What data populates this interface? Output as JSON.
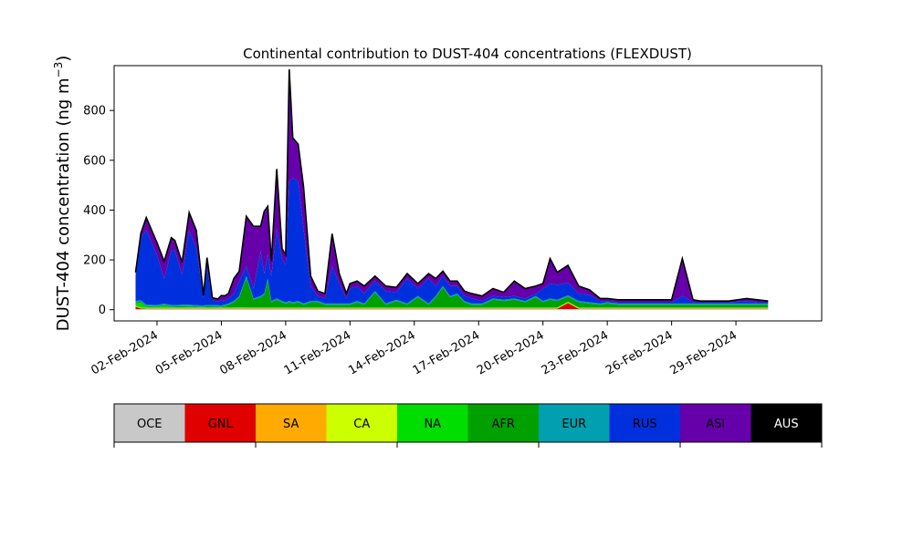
{
  "chart_data": {
    "type": "area",
    "title": "Continental contribution to DUST-404 concentrations (FLEXDUST)",
    "xlabel": "",
    "ylabel_main": "DUST-404 concentration (ng m",
    "ylabel_unit_sup": "−3",
    "ylabel_close": ")",
    "ylim": [
      -45,
      980
    ],
    "yticks": [
      0,
      200,
      400,
      600,
      800
    ],
    "xlim": [
      "2024-01-31",
      "2024-03-04"
    ],
    "xtick_labels": [
      "02-Feb-2024",
      "05-Feb-2024",
      "08-Feb-2024",
      "11-Feb-2024",
      "14-Feb-2024",
      "17-Feb-2024",
      "20-Feb-2024",
      "23-Feb-2024",
      "26-Feb-2024",
      "29-Feb-2024"
    ],
    "xtick_dates": [
      "2024-02-02",
      "2024-02-05",
      "2024-02-08",
      "2024-02-11",
      "2024-02-14",
      "2024-02-17",
      "2024-02-20",
      "2024-02-23",
      "2024-02-26",
      "2024-02-29"
    ],
    "grid": false,
    "stacked": true,
    "total_line_color": "#000000",
    "x": [
      "2024-02-01",
      "2024-02-01",
      "2024-02-01",
      "2024-02-02",
      "2024-02-02",
      "2024-02-02",
      "2024-02-02",
      "2024-02-03",
      "2024-02-03",
      "2024-02-03",
      "2024-02-04",
      "2024-02-04",
      "2024-02-04",
      "2024-02-04",
      "2024-02-05",
      "2024-02-05",
      "2024-02-05",
      "2024-02-05",
      "2024-02-05",
      "2024-02-06",
      "2024-02-06",
      "2024-02-06",
      "2024-02-07",
      "2024-02-07",
      "2024-02-07",
      "2024-02-07",
      "2024-02-07",
      "2024-02-08",
      "2024-02-08",
      "2024-02-08",
      "2024-02-08",
      "2024-02-08",
      "2024-02-09",
      "2024-02-09",
      "2024-02-09",
      "2024-02-10",
      "2024-02-10",
      "2024-02-10",
      "2024-02-11",
      "2024-02-11",
      "2024-02-11",
      "2024-02-12",
      "2024-02-12",
      "2024-02-13",
      "2024-02-13",
      "2024-02-14",
      "2024-02-14",
      "2024-02-15",
      "2024-02-15",
      "2024-02-15",
      "2024-02-16",
      "2024-02-16",
      "2024-02-16",
      "2024-02-17",
      "2024-02-17",
      "2024-02-18",
      "2024-02-18",
      "2024-02-19",
      "2024-02-19",
      "2024-02-20",
      "2024-02-20",
      "2024-02-20",
      "2024-02-21",
      "2024-02-21",
      "2024-02-22",
      "2024-02-22",
      "2024-02-23",
      "2024-02-23",
      "2024-02-24",
      "2024-02-25",
      "2024-02-26",
      "2024-02-26",
      "2024-02-27",
      "2024-02-27",
      "2024-02-27",
      "2024-02-28",
      "2024-02-28",
      "2024-02-29",
      "2024-03-01",
      "2024-03-01"
    ],
    "x_time_of_day_hours": [
      0,
      6,
      12,
      0,
      8,
      16,
      20,
      4,
      12,
      20,
      4,
      8,
      14,
      20,
      0,
      4,
      8,
      14,
      20,
      4,
      12,
      20,
      0,
      4,
      8,
      14,
      20,
      0,
      4,
      8,
      14,
      20,
      4,
      12,
      20,
      4,
      12,
      20,
      0,
      8,
      16,
      4,
      16,
      4,
      16,
      4,
      16,
      0,
      8,
      16,
      0,
      8,
      16,
      4,
      16,
      4,
      16,
      4,
      16,
      0,
      8,
      16,
      4,
      16,
      4,
      16,
      0,
      12,
      0,
      0,
      0,
      12,
      0,
      8,
      16,
      4,
      16,
      12,
      0,
      12
    ],
    "series": [
      {
        "name": "OCE",
        "color": "#c8c8c8",
        "values": [
          2,
          2,
          2,
          2,
          2,
          2,
          2,
          2,
          2,
          2,
          2,
          2,
          2,
          2,
          2,
          2,
          2,
          2,
          2,
          2,
          2,
          2,
          2,
          2,
          2,
          2,
          2,
          2,
          2,
          2,
          2,
          2,
          2,
          2,
          2,
          2,
          2,
          2,
          2,
          2,
          2,
          2,
          2,
          2,
          2,
          2,
          2,
          2,
          2,
          2,
          2,
          2,
          2,
          2,
          2,
          2,
          2,
          2,
          2,
          2,
          2,
          2,
          2,
          2,
          2,
          2,
          2,
          2,
          2,
          2,
          2,
          2,
          2,
          2,
          2,
          2,
          2,
          2,
          2,
          2
        ]
      },
      {
        "name": "GNL",
        "color": "#e00000",
        "values": [
          10,
          3,
          2,
          2,
          2,
          2,
          2,
          2,
          2,
          2,
          2,
          2,
          2,
          2,
          2,
          2,
          2,
          2,
          2,
          2,
          2,
          2,
          2,
          2,
          2,
          2,
          2,
          2,
          2,
          2,
          2,
          2,
          2,
          2,
          2,
          2,
          2,
          2,
          2,
          2,
          2,
          2,
          2,
          2,
          2,
          2,
          2,
          2,
          2,
          2,
          2,
          2,
          2,
          2,
          2,
          2,
          2,
          2,
          2,
          2,
          2,
          2,
          25,
          2,
          2,
          2,
          2,
          2,
          2,
          2,
          2,
          2,
          2,
          2,
          2,
          2,
          2,
          2,
          2,
          2
        ]
      },
      {
        "name": "SA",
        "color": "#ffaa00",
        "values": [
          1,
          1,
          1,
          1,
          1,
          1,
          1,
          1,
          1,
          1,
          1,
          1,
          1,
          1,
          1,
          1,
          1,
          1,
          1,
          1,
          1,
          1,
          1,
          1,
          1,
          1,
          1,
          1,
          1,
          1,
          1,
          1,
          1,
          1,
          1,
          1,
          1,
          1,
          1,
          1,
          1,
          1,
          1,
          1,
          1,
          1,
          1,
          1,
          1,
          1,
          1,
          1,
          1,
          1,
          1,
          1,
          1,
          1,
          1,
          1,
          1,
          1,
          1,
          1,
          1,
          1,
          1,
          1,
          1,
          1,
          1,
          1,
          1,
          1,
          1,
          1,
          1,
          1,
          1,
          1
        ]
      },
      {
        "name": "CA",
        "color": "#ccff00",
        "values": [
          2,
          2,
          2,
          2,
          2,
          2,
          2,
          2,
          2,
          2,
          2,
          2,
          2,
          2,
          2,
          2,
          2,
          2,
          2,
          2,
          2,
          2,
          2,
          2,
          2,
          2,
          2,
          2,
          2,
          2,
          2,
          2,
          2,
          2,
          2,
          2,
          2,
          2,
          2,
          2,
          2,
          2,
          2,
          2,
          2,
          2,
          2,
          2,
          2,
          2,
          2,
          2,
          2,
          2,
          2,
          2,
          2,
          2,
          2,
          2,
          2,
          2,
          2,
          2,
          2,
          2,
          2,
          2,
          2,
          2,
          2,
          2,
          2,
          2,
          2,
          2,
          2,
          2,
          2,
          2
        ]
      },
      {
        "name": "NA",
        "color": "#00dd00",
        "values": [
          10,
          20,
          5,
          4,
          8,
          4,
          3,
          3,
          4,
          3,
          2,
          3,
          3,
          3,
          2,
          4,
          3,
          3,
          2,
          3,
          3,
          3,
          3,
          3,
          3,
          3,
          3,
          3,
          3,
          3,
          3,
          3,
          3,
          3,
          3,
          3,
          3,
          3,
          3,
          3,
          3,
          3,
          3,
          3,
          3,
          3,
          3,
          3,
          3,
          3,
          3,
          3,
          3,
          3,
          3,
          3,
          3,
          3,
          3,
          3,
          3,
          3,
          3,
          3,
          3,
          3,
          3,
          3,
          3,
          3,
          3,
          3,
          3,
          3,
          3,
          3,
          3,
          3,
          3,
          3
        ]
      },
      {
        "name": "AFR",
        "color": "#00a000",
        "values": [
          5,
          5,
          3,
          3,
          4,
          3,
          3,
          5,
          4,
          3,
          3,
          4,
          3,
          3,
          3,
          5,
          10,
          20,
          40,
          120,
          30,
          40,
          50,
          110,
          20,
          30,
          20,
          15,
          20,
          15,
          20,
          10,
          20,
          20,
          10,
          10,
          10,
          10,
          10,
          20,
          10,
          60,
          10,
          25,
          10,
          40,
          10,
          40,
          80,
          40,
          50,
          20,
          10,
          10,
          30,
          25,
          30,
          20,
          40,
          20,
          30,
          25,
          20,
          20,
          15,
          10,
          15,
          10,
          10,
          10,
          10,
          10,
          10,
          10,
          10,
          10,
          10,
          10,
          10,
          10
        ]
      },
      {
        "name": "EUR",
        "color": "#00a0b0",
        "values": [
          5,
          5,
          5,
          5,
          5,
          5,
          5,
          5,
          5,
          5,
          5,
          5,
          5,
          5,
          5,
          5,
          5,
          5,
          5,
          5,
          5,
          5,
          5,
          5,
          5,
          5,
          5,
          5,
          5,
          5,
          5,
          5,
          5,
          5,
          5,
          5,
          5,
          5,
          5,
          5,
          5,
          5,
          5,
          5,
          5,
          5,
          5,
          5,
          5,
          5,
          5,
          5,
          5,
          5,
          5,
          5,
          5,
          5,
          5,
          5,
          5,
          5,
          5,
          5,
          5,
          5,
          5,
          5,
          5,
          5,
          5,
          5,
          5,
          5,
          5,
          5,
          5,
          5,
          5,
          5
        ]
      },
      {
        "name": "RUS",
        "color": "#0030dd",
        "values": [
          100,
          250,
          300,
          200,
          100,
          220,
          220,
          120,
          300,
          230,
          30,
          150,
          20,
          15,
          20,
          15,
          20,
          30,
          60,
          40,
          40,
          180,
          80,
          100,
          100,
          280,
          170,
          150,
          480,
          500,
          480,
          300,
          60,
          20,
          20,
          150,
          80,
          20,
          60,
          60,
          40,
          40,
          50,
          30,
          100,
          30,
          100,
          40,
          40,
          40,
          30,
          20,
          20,
          10,
          10,
          10,
          10,
          10,
          10,
          50,
          60,
          60,
          50,
          30,
          30,
          10,
          5,
          5,
          5,
          5,
          5,
          30,
          5,
          5,
          5,
          5,
          5,
          10,
          5,
          5
        ]
      },
      {
        "name": "ASI",
        "color": "#6600aa",
        "values": [
          15,
          20,
          50,
          50,
          70,
          50,
          40,
          50,
          70,
          70,
          10,
          40,
          10,
          10,
          20,
          20,
          20,
          60,
          40,
          200,
          250,
          100,
          250,
          190,
          60,
          240,
          40,
          40,
          450,
          160,
          150,
          170,
          40,
          20,
          20,
          130,
          40,
          20,
          20,
          20,
          30,
          20,
          20,
          20,
          20,
          20,
          20,
          30,
          20,
          20,
          20,
          20,
          20,
          20,
          30,
          20,
          60,
          40,
          30,
          20,
          100,
          50,
          70,
          30,
          20,
          10,
          10,
          10,
          10,
          10,
          10,
          150,
          10,
          5,
          5,
          5,
          5,
          10,
          10,
          5
        ]
      },
      {
        "name": "AUS",
        "color": "#000000",
        "values": [
          0,
          0,
          0,
          0,
          0,
          0,
          0,
          0,
          0,
          0,
          0,
          0,
          0,
          0,
          0,
          0,
          0,
          0,
          0,
          0,
          0,
          0,
          0,
          0,
          0,
          0,
          0,
          0,
          0,
          0,
          0,
          0,
          0,
          0,
          0,
          0,
          0,
          0,
          0,
          0,
          0,
          0,
          0,
          0,
          0,
          0,
          0,
          0,
          0,
          0,
          0,
          0,
          0,
          0,
          0,
          0,
          0,
          0,
          0,
          0,
          0,
          0,
          0,
          0,
          0,
          0,
          0,
          0,
          0,
          0,
          0,
          0,
          0,
          0,
          0,
          0,
          0,
          0,
          0,
          0
        ]
      }
    ]
  },
  "legend": {
    "placement": "bottom",
    "items": [
      {
        "label": "OCE",
        "color": "#c8c8c8",
        "text_color": "#000000"
      },
      {
        "label": "GNL",
        "color": "#e00000",
        "text_color": "#000000"
      },
      {
        "label": "SA",
        "color": "#ffaa00",
        "text_color": "#000000"
      },
      {
        "label": "CA",
        "color": "#ccff00",
        "text_color": "#000000"
      },
      {
        "label": "NA",
        "color": "#00dd00",
        "text_color": "#000000"
      },
      {
        "label": "AFR",
        "color": "#00a000",
        "text_color": "#000000"
      },
      {
        "label": "EUR",
        "color": "#00a0b0",
        "text_color": "#000000"
      },
      {
        "label": "RUS",
        "color": "#0030dd",
        "text_color": "#000000"
      },
      {
        "label": "ASI",
        "color": "#6600aa",
        "text_color": "#000000"
      },
      {
        "label": "AUS",
        "color": "#000000",
        "text_color": "#ffffff"
      }
    ]
  }
}
